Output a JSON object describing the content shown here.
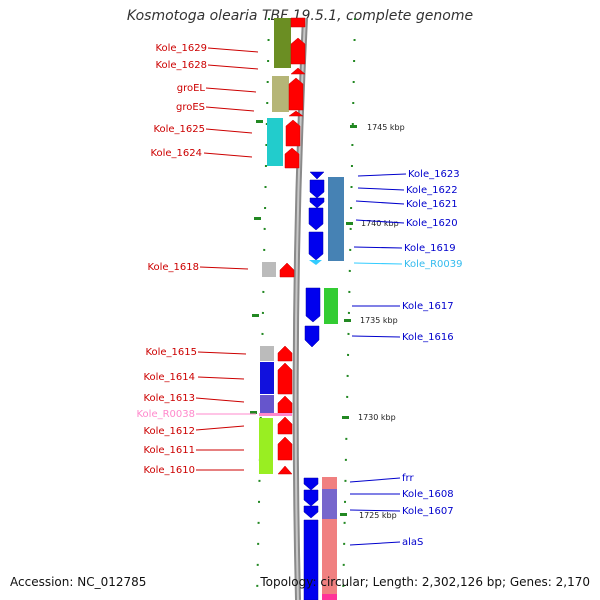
{
  "title": "Kosmotoga olearia TBF 19.5.1, complete genome",
  "footer": {
    "accession": "Accession: NC_012785",
    "topology": "Topology: circular; Length: 2,302,126 bp; Genes: 2,170"
  },
  "colors": {
    "forward_cds": "#ff0000",
    "reverse_cds": "#0000ff",
    "forward_label": "#cc0000",
    "reverse_label": "#0000cc",
    "rna_forward": "#ff88cc",
    "rna_reverse": "#33ccff",
    "backbone": "#8a8a8a",
    "tick": "#228822"
  },
  "scale_labels": [
    "1745 kbp",
    "1740 kbp",
    "1735 kbp",
    "1730 kbp",
    "1725 kbp"
  ],
  "left_genes": [
    {
      "label": "Kole_1629",
      "color": "#cc0000"
    },
    {
      "label": "Kole_1628",
      "color": "#cc0000"
    },
    {
      "label": "groEL",
      "color": "#cc0000"
    },
    {
      "label": "groES",
      "color": "#cc0000"
    },
    {
      "label": "Kole_1625",
      "color": "#cc0000"
    },
    {
      "label": "Kole_1624",
      "color": "#cc0000"
    },
    {
      "label": "Kole_1618",
      "color": "#cc0000"
    },
    {
      "label": "Kole_1615",
      "color": "#cc0000"
    },
    {
      "label": "Kole_1614",
      "color": "#cc0000"
    },
    {
      "label": "Kole_1613",
      "color": "#cc0000"
    },
    {
      "label": "Kole_R0038",
      "color": "#ff88cc"
    },
    {
      "label": "Kole_1612",
      "color": "#cc0000"
    },
    {
      "label": "Kole_1611",
      "color": "#cc0000"
    },
    {
      "label": "Kole_1610",
      "color": "#cc0000"
    }
  ],
  "right_genes": [
    {
      "label": "Kole_1623",
      "color": "#0000cc"
    },
    {
      "label": "Kole_1622",
      "color": "#0000cc"
    },
    {
      "label": "Kole_1621",
      "color": "#0000cc"
    },
    {
      "label": "Kole_1620",
      "color": "#0000cc"
    },
    {
      "label": "Kole_1619",
      "color": "#0000cc"
    },
    {
      "label": "Kole_R0039",
      "color": "#33bbee"
    },
    {
      "label": "Kole_1617",
      "color": "#0000cc"
    },
    {
      "label": "Kole_1616",
      "color": "#0000cc"
    },
    {
      "label": "frr",
      "color": "#0000cc"
    },
    {
      "label": "Kole_1608",
      "color": "#0000cc"
    },
    {
      "label": "Kole_1607",
      "color": "#0000cc"
    },
    {
      "label": "alaS",
      "color": "#0000cc"
    }
  ]
}
